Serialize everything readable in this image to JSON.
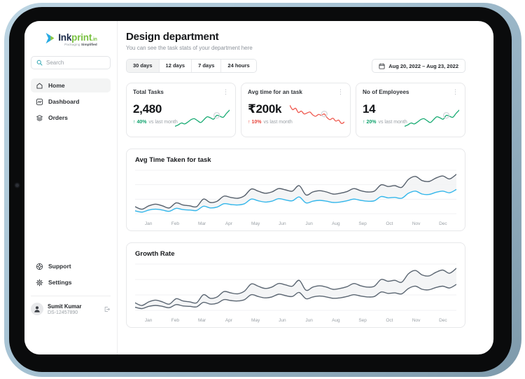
{
  "sidebar": {
    "logo": {
      "ink": "Ink",
      "print": "print",
      "tld": ".in",
      "tagline_light": "Packaging ",
      "tagline_bold": "Simplified"
    },
    "search_placeholder": "Search",
    "nav": [
      {
        "label": "Home"
      },
      {
        "label": "Dashboard"
      },
      {
        "label": "Orders"
      }
    ],
    "footer_nav": [
      {
        "label": "Support"
      },
      {
        "label": "Settings"
      }
    ],
    "user": {
      "name": "Sumit Kumar",
      "id": "DS-12457890"
    }
  },
  "header": {
    "title": "Design department",
    "subtitle": "You can see the task stats of your department here"
  },
  "filters": {
    "options": [
      "30 days",
      "12 days",
      "7 days",
      "24 hours"
    ],
    "active": "30 days",
    "date_range": "Aug 20, 2022 – Aug 23, 2022"
  },
  "stats": [
    {
      "title": "Total Tasks",
      "value": "2,480",
      "arrow": "↑",
      "change": "40%",
      "note": "vs last month",
      "trend_color": "#0fa36d",
      "spark": {
        "color": "#18ab73",
        "ring_index": 13,
        "points": [
          2,
          8,
          16,
          12,
          20,
          30,
          34,
          26,
          18,
          30,
          42,
          38,
          32,
          48,
          44,
          40,
          56,
          70
        ]
      }
    },
    {
      "title": "Avg time for an task",
      "value": "₹200k",
      "arrow": "↑",
      "change": "10%",
      "note": "vs last month",
      "trend_color": "#e8463c",
      "spark": {
        "color": "#ef5a50",
        "ring_index": 12,
        "points": [
          90,
          72,
          78,
          60,
          66,
          54,
          58,
          62,
          50,
          44,
          52,
          48,
          54,
          38,
          30,
          36,
          24,
          28,
          14,
          20
        ]
      }
    },
    {
      "title": "No of Employees",
      "value": "14",
      "arrow": "↑",
      "change": "20%",
      "note": "vs last month",
      "trend_color": "#0fa36d",
      "spark": {
        "color": "#18ab73",
        "ring_index": 13,
        "points": [
          2,
          8,
          16,
          12,
          20,
          30,
          34,
          26,
          18,
          30,
          42,
          38,
          32,
          48,
          44,
          40,
          56,
          70
        ]
      }
    }
  ],
  "chart_data": [
    {
      "type": "line",
      "title": "Avg Time Taken for task",
      "months": [
        "Jan",
        "Feb",
        "Mar",
        "Apr",
        "May",
        "Jun",
        "Jun",
        "Aug",
        "Sep",
        "Oct",
        "Nov",
        "Dec"
      ],
      "grid": true,
      "fill_between": "#f2f3f4",
      "series": [
        {
          "name": "upper",
          "color": "#555f6b",
          "values": [
            20,
            14,
            22,
            26,
            22,
            17,
            29,
            24,
            22,
            20,
            38,
            30,
            33,
            45,
            42,
            40,
            46,
            62,
            57,
            52,
            55,
            63,
            60,
            57,
            70,
            48,
            55,
            58,
            55,
            50,
            52,
            56,
            63,
            58,
            55,
            57,
            72,
            68,
            70,
            66,
            85,
            92,
            82,
            80,
            88,
            93,
            86,
            97
          ]
        },
        {
          "name": "lower",
          "color": "#33b6ea",
          "values": [
            10,
            7,
            12,
            14,
            12,
            9,
            16,
            13,
            12,
            11,
            21,
            17,
            19,
            27,
            25,
            24,
            27,
            38,
            34,
            31,
            33,
            39,
            36,
            34,
            43,
            29,
            33,
            35,
            33,
            30,
            31,
            34,
            38,
            35,
            33,
            34,
            44,
            41,
            42,
            40,
            52,
            57,
            50,
            49,
            54,
            57,
            53,
            61
          ]
        }
      ]
    },
    {
      "type": "line",
      "title": "Growth Rate",
      "months": [
        "Jan",
        "Feb",
        "Mar",
        "Apr",
        "May",
        "Jun",
        "Jun",
        "Aug",
        "Sep",
        "Oct",
        "Nov",
        "Dec"
      ],
      "grid": true,
      "fill_between": "#f2f3f4",
      "series": [
        {
          "name": "upper",
          "color": "#5b6672",
          "values": [
            20,
            14,
            22,
            26,
            22,
            17,
            29,
            24,
            22,
            20,
            38,
            30,
            33,
            45,
            42,
            40,
            46,
            62,
            57,
            52,
            55,
            63,
            60,
            57,
            70,
            48,
            55,
            58,
            55,
            50,
            52,
            56,
            63,
            58,
            55,
            57,
            72,
            68,
            70,
            66,
            85,
            92,
            82,
            80,
            88,
            93,
            86,
            97
          ]
        },
        {
          "name": "lower",
          "color": "#5b6672",
          "values": [
            10,
            7,
            12,
            14,
            12,
            9,
            16,
            13,
            12,
            11,
            21,
            17,
            19,
            27,
            25,
            24,
            27,
            38,
            34,
            31,
            33,
            39,
            36,
            34,
            43,
            29,
            33,
            35,
            33,
            30,
            31,
            34,
            38,
            35,
            33,
            34,
            44,
            41,
            42,
            40,
            52,
            57,
            50,
            49,
            54,
            57,
            53,
            61
          ]
        }
      ]
    }
  ]
}
